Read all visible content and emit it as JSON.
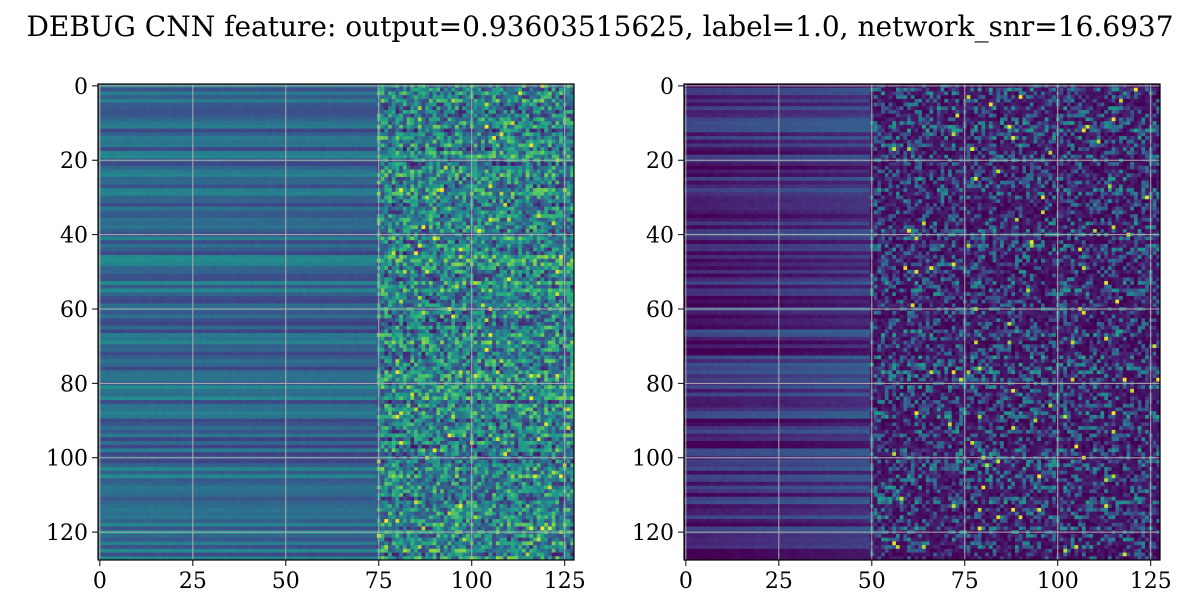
{
  "figure": {
    "title": "DEBUG CNN feature: output=0.93603515625, label=1.0, network_snr=16.6937"
  },
  "colors": {
    "colormap": "viridis",
    "viridis_low": "#440154",
    "viridis_mid": "#21918c",
    "viridis_high": "#fde725",
    "grid": "#b0b0b0",
    "axes_edge": "#000000"
  },
  "chart_data": [
    {
      "type": "heatmap",
      "name": "left-panel",
      "title": "",
      "xlabel": "",
      "ylabel": "",
      "x_ticks": [
        0,
        25,
        50,
        75,
        100,
        125
      ],
      "y_ticks": [
        0,
        20,
        40,
        60,
        80,
        100,
        120
      ],
      "xlim": [
        -0.5,
        127.5
      ],
      "ylim": [
        127.5,
        -0.5
      ],
      "rows": 128,
      "cols": 128,
      "grid": true,
      "colormap": "viridis",
      "description_of_values": {
        "smooth_region_cols": [
          0,
          75
        ],
        "smooth_region_level": 0.35,
        "noisy_region_cols": [
          75,
          127
        ],
        "noisy_region_level": 0.45,
        "value_range": [
          0,
          1
        ]
      }
    },
    {
      "type": "heatmap",
      "name": "right-panel",
      "title": "",
      "xlabel": "",
      "ylabel": "",
      "x_ticks": [
        0,
        25,
        50,
        75,
        100,
        125
      ],
      "y_ticks": [
        0,
        20,
        40,
        60,
        80,
        100,
        120
      ],
      "xlim": [
        -0.5,
        127.5
      ],
      "ylim": [
        127.5,
        -0.5
      ],
      "rows": 128,
      "cols": 128,
      "grid": true,
      "colormap": "viridis",
      "description_of_values": {
        "smooth_region_cols": [
          0,
          50
        ],
        "smooth_region_level": 0.1,
        "noisy_region_cols": [
          50,
          127
        ],
        "noisy_region_level": 0.2,
        "value_range": [
          0,
          1
        ]
      }
    }
  ]
}
